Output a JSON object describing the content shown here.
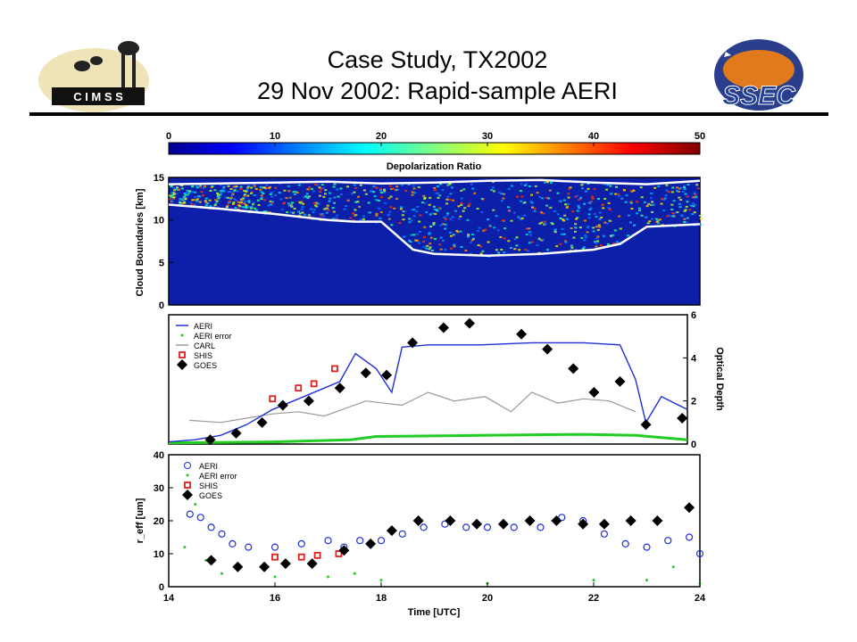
{
  "slide": {
    "title_line1": "Case Study, TX2002",
    "title_line2": "29 Nov 2002: Rapid-sample AERI",
    "left_logo_text": "C I M S S",
    "right_logo_text": "SSEC"
  },
  "colors": {
    "rule": "#000000",
    "aeri": "#1f2fd8",
    "aeri_error": "#22cc22",
    "carl": "#9a9a9a",
    "shis": "#e02020",
    "goes": "#000000",
    "cloud_bg": "#0b1fa8",
    "boundary": "#ffffff"
  },
  "chart_data": [
    {
      "type": "heatmap",
      "colorbar": {
        "label": "Depolarization Ratio",
        "ticks": [
          "0",
          "10",
          "20",
          "30",
          "40",
          "50"
        ],
        "range": [
          0,
          50
        ]
      },
      "ylabel": "Cloud Boundaries [km]",
      "yticks": [
        "0",
        "5",
        "10",
        "15"
      ],
      "ylim": [
        0,
        15
      ],
      "xlim": [
        14,
        24
      ],
      "cloud_top_km": [
        [
          14.0,
          14.2
        ],
        [
          15.0,
          14.3
        ],
        [
          16.0,
          14.4
        ],
        [
          17.0,
          14.5
        ],
        [
          18.0,
          14.3
        ],
        [
          19.0,
          14.4
        ],
        [
          20.0,
          14.6
        ],
        [
          21.0,
          14.7
        ],
        [
          22.0,
          14.4
        ],
        [
          23.0,
          14.2
        ],
        [
          24.0,
          14.6
        ]
      ],
      "cloud_base_km": [
        [
          14.0,
          11.8
        ],
        [
          15.0,
          11.3
        ],
        [
          16.0,
          10.7
        ],
        [
          17.0,
          10.0
        ],
        [
          17.5,
          9.8
        ],
        [
          18.0,
          9.8
        ],
        [
          18.6,
          6.5
        ],
        [
          19.0,
          6.0
        ],
        [
          20.0,
          5.8
        ],
        [
          21.0,
          6.0
        ],
        [
          22.0,
          6.5
        ],
        [
          22.5,
          7.2
        ],
        [
          23.0,
          9.2
        ],
        [
          24.0,
          9.5
        ]
      ]
    },
    {
      "type": "line",
      "ylabel": "Optical Depth",
      "yticks": [
        "0",
        "2",
        "4",
        "6"
      ],
      "ylim": [
        0,
        6
      ],
      "xlim": [
        14,
        24
      ],
      "legend": [
        "AERI",
        "AERI error",
        "CARL",
        "SHIS",
        "GOES"
      ],
      "legend_position": "top-left",
      "series": [
        {
          "name": "AERI",
          "values": [
            [
              14.0,
              0.1
            ],
            [
              14.5,
              0.2
            ],
            [
              15.0,
              0.4
            ],
            [
              15.5,
              0.9
            ],
            [
              16.0,
              1.6
            ],
            [
              16.5,
              2.1
            ],
            [
              17.0,
              2.6
            ],
            [
              17.3,
              2.9
            ],
            [
              17.6,
              4.2
            ],
            [
              18.0,
              3.5
            ],
            [
              18.3,
              2.4
            ],
            [
              18.5,
              4.5
            ],
            [
              19.0,
              4.6
            ],
            [
              20.0,
              4.6
            ],
            [
              21.0,
              4.7
            ],
            [
              22.0,
              4.7
            ],
            [
              22.7,
              4.6
            ],
            [
              23.0,
              3.0
            ],
            [
              23.2,
              1.0
            ],
            [
              23.5,
              2.2
            ],
            [
              24.0,
              1.6
            ]
          ]
        },
        {
          "name": "AERI error",
          "values": [
            [
              14.0,
              0.05
            ],
            [
              16.0,
              0.1
            ],
            [
              17.5,
              0.2
            ],
            [
              18.0,
              0.35
            ],
            [
              20.0,
              0.4
            ],
            [
              22.0,
              0.45
            ],
            [
              23.0,
              0.4
            ],
            [
              24.0,
              0.2
            ]
          ]
        },
        {
          "name": "CARL",
          "values": [
            [
              14.4,
              1.1
            ],
            [
              15.0,
              1.0
            ],
            [
              15.5,
              1.2
            ],
            [
              16.0,
              1.4
            ],
            [
              16.5,
              1.5
            ],
            [
              17.0,
              1.3
            ],
            [
              17.8,
              2.0
            ],
            [
              18.5,
              1.8
            ],
            [
              19.0,
              2.4
            ],
            [
              19.5,
              2.0
            ],
            [
              20.1,
              2.2
            ],
            [
              20.6,
              1.5
            ],
            [
              21.0,
              2.4
            ],
            [
              21.5,
              1.9
            ],
            [
              22.0,
              2.1
            ],
            [
              22.5,
              2.0
            ],
            [
              23.0,
              1.5
            ]
          ]
        },
        {
          "name": "SHIS",
          "values": [
            [
              16.0,
              2.1
            ],
            [
              16.5,
              2.6
            ],
            [
              16.8,
              2.8
            ],
            [
              17.2,
              3.5
            ]
          ]
        },
        {
          "name": "GOES",
          "values": [
            [
              14.8,
              0.2
            ],
            [
              15.3,
              0.5
            ],
            [
              15.8,
              1.0
            ],
            [
              16.2,
              1.8
            ],
            [
              16.7,
              2.0
            ],
            [
              17.3,
              2.6
            ],
            [
              17.8,
              3.3
            ],
            [
              18.2,
              3.2
            ],
            [
              18.7,
              4.7
            ],
            [
              19.3,
              5.4
            ],
            [
              19.8,
              5.6
            ],
            [
              20.8,
              5.1
            ],
            [
              21.3,
              4.4
            ],
            [
              21.8,
              3.5
            ],
            [
              22.2,
              2.4
            ],
            [
              22.7,
              2.9
            ],
            [
              23.2,
              0.9
            ],
            [
              23.9,
              1.2
            ]
          ]
        }
      ]
    },
    {
      "type": "scatter",
      "ylabel": "r_eff [um]",
      "xlabel": "Time [UTC]",
      "xticks": [
        "14",
        "16",
        "18",
        "20",
        "22",
        "24"
      ],
      "yticks": [
        "0",
        "10",
        "20",
        "30",
        "40"
      ],
      "ylim": [
        0,
        40
      ],
      "xlim": [
        14,
        24
      ],
      "legend": [
        "AERI",
        "AERI error",
        "SHIS",
        "GOES"
      ],
      "legend_position": "top-left",
      "series": [
        {
          "name": "AERI",
          "values": [
            [
              14.4,
              22
            ],
            [
              14.6,
              21
            ],
            [
              14.8,
              18
            ],
            [
              15.0,
              16
            ],
            [
              15.2,
              13
            ],
            [
              15.5,
              12
            ],
            [
              16.0,
              12
            ],
            [
              16.5,
              13
            ],
            [
              17.0,
              14
            ],
            [
              17.3,
              12
            ],
            [
              17.6,
              14
            ],
            [
              18.0,
              14
            ],
            [
              18.4,
              16
            ],
            [
              18.8,
              18
            ],
            [
              19.2,
              19
            ],
            [
              19.6,
              18
            ],
            [
              20.0,
              18
            ],
            [
              20.5,
              18
            ],
            [
              21.0,
              18
            ],
            [
              21.4,
              21
            ],
            [
              21.8,
              20
            ],
            [
              22.2,
              16
            ],
            [
              22.6,
              13
            ],
            [
              23.0,
              12
            ],
            [
              23.4,
              14
            ],
            [
              23.8,
              15
            ],
            [
              24.0,
              10
            ]
          ]
        },
        {
          "name": "AERI error",
          "values": [
            [
              14.3,
              12
            ],
            [
              14.5,
              25
            ],
            [
              14.7,
              8
            ],
            [
              15.0,
              4
            ],
            [
              16.0,
              3
            ],
            [
              17.0,
              3
            ],
            [
              17.5,
              4
            ],
            [
              18.0,
              2
            ],
            [
              20.0,
              1
            ],
            [
              22.0,
              2
            ],
            [
              23.0,
              2
            ],
            [
              23.5,
              6
            ],
            [
              24.0,
              1
            ]
          ]
        },
        {
          "name": "SHIS",
          "values": [
            [
              16.0,
              9
            ],
            [
              16.5,
              9
            ],
            [
              16.8,
              9.5
            ],
            [
              17.2,
              10
            ]
          ]
        },
        {
          "name": "GOES",
          "values": [
            [
              14.8,
              8
            ],
            [
              15.3,
              6
            ],
            [
              15.8,
              6
            ],
            [
              16.2,
              7
            ],
            [
              16.7,
              7
            ],
            [
              17.3,
              11
            ],
            [
              17.8,
              13
            ],
            [
              18.2,
              17
            ],
            [
              18.7,
              20
            ],
            [
              19.3,
              20
            ],
            [
              19.8,
              19
            ],
            [
              20.3,
              19
            ],
            [
              20.8,
              20
            ],
            [
              21.3,
              20
            ],
            [
              21.8,
              19
            ],
            [
              22.2,
              19
            ],
            [
              22.7,
              20
            ],
            [
              23.2,
              20
            ],
            [
              23.8,
              24
            ]
          ]
        }
      ]
    }
  ]
}
